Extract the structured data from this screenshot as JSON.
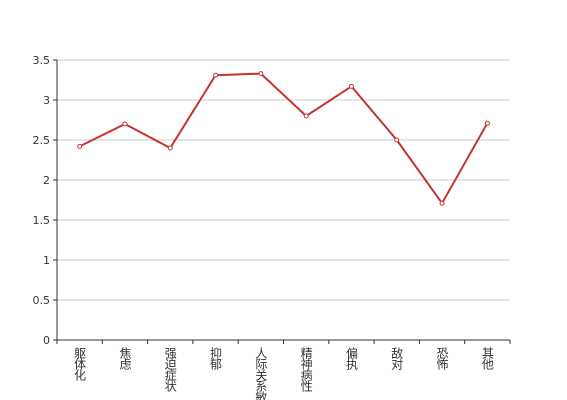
{
  "chart_data": {
    "type": "line",
    "categories": [
      "躯体化",
      "焦虑",
      "强迫症状",
      "抑郁",
      "人际关系敏感",
      "精神病性",
      "偏执",
      "敌对",
      "恐怖",
      "其他"
    ],
    "series": [
      {
        "color": "#c23531",
        "values": [
          2.42,
          2.7,
          2.4,
          3.31,
          3.33,
          2.8,
          3.17,
          2.5,
          1.71,
          2.71
        ]
      }
    ],
    "ylim": [
      0,
      3.5
    ],
    "yticks": [
      0,
      0.5,
      1,
      1.5,
      2,
      2.5,
      3,
      3.5
    ],
    "grid": true
  }
}
